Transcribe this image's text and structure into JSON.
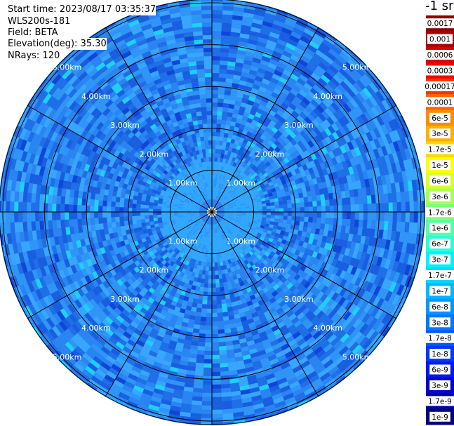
{
  "info": {
    "start_time": "Start time: 2023/08/17 03:35:37",
    "instrument": "WLS200s-181",
    "field": "Field: BETA",
    "elevation": "Elevation(deg): 35.30",
    "nrays": "NRays: 120"
  },
  "chart_data": {
    "type": "heatmap",
    "projection": "polar (PPI)",
    "field": "BETA",
    "nrays": 120,
    "elevation_deg": 35.3,
    "range_rings_km": [
      1,
      2,
      3,
      4,
      5
    ],
    "max_range_km": 5.1,
    "range_ring_labels": [
      "1.00km",
      "2.00km",
      "3.00km",
      "4.00km",
      "5.00km"
    ],
    "spoke_angles_deg": [
      0,
      30,
      60,
      90,
      120,
      150,
      180,
      210,
      240,
      270,
      300,
      330
    ],
    "colorbar": {
      "title": "-1 sr",
      "ticks": [
        "0.0017",
        "0.001",
        "0.0006",
        "0.0003",
        "0.00017",
        "0.0001",
        "6e-5",
        "3e-5",
        "1.7e-5",
        "1e-5",
        "6e-6",
        "3e-6",
        "1.7e-6",
        "1e-6",
        "6e-7",
        "3e-7",
        "1.7e-7",
        "1e-7",
        "6e-8",
        "3e-8",
        "1.7e-8",
        "1e-8",
        "6e-9",
        "3e-9",
        "1.7e-9",
        "1e-9"
      ],
      "colors": [
        "#8c0000",
        "#a80000",
        "#d40000",
        "#f20000",
        "#ff3300",
        "#ff6600",
        "#ff8c00",
        "#ffb000",
        "#ffd700",
        "#ffff00",
        "#d8ff2a",
        "#a8ff55",
        "#7cff7c",
        "#55ffa8",
        "#2affd4",
        "#00f2ff",
        "#00d8ff",
        "#00b8ff",
        "#0098ff",
        "#0078ff",
        "#0058ff",
        "#0038ff",
        "#0018f0",
        "#0000d0",
        "#0000a8",
        "#000080"
      ]
    },
    "colors": {
      "background_field": "#2c84f0",
      "near_field": "#33a8ff",
      "speckle_light": "#1fd0f4",
      "speckle_dark": "#1046d8",
      "grid": "#000000",
      "ring_label": "#ffffff"
    }
  }
}
